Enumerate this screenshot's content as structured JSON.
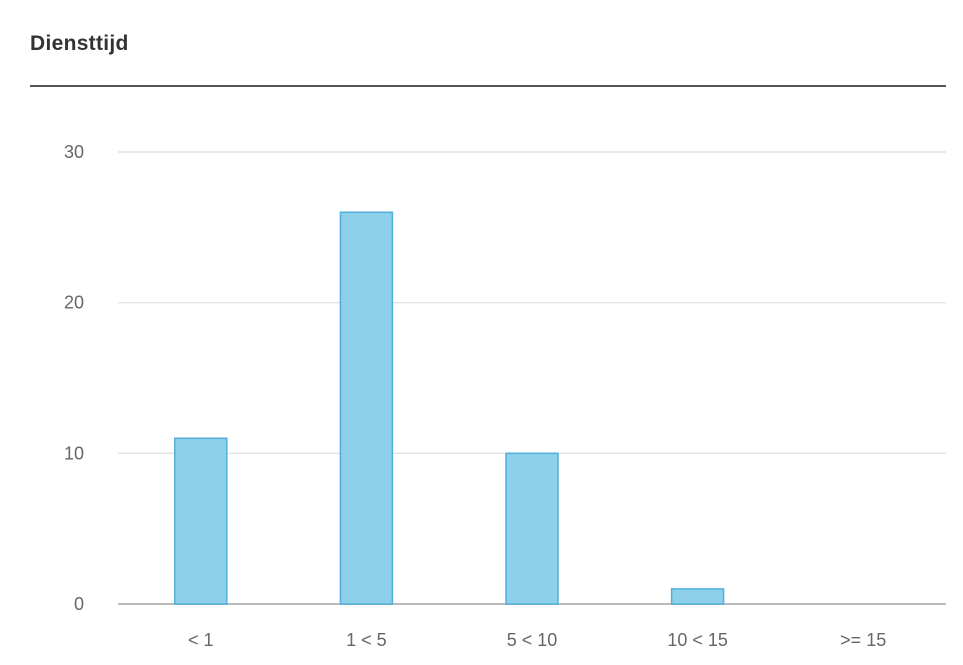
{
  "panel": {
    "title": "Diensttijd"
  },
  "colors": {
    "bar_fill": "#8ecfea",
    "bar_stroke": "#4fb0dc",
    "grid": "#e4e4e4",
    "axis": "#bbbbbb"
  },
  "chart_data": {
    "type": "bar",
    "categories": [
      "< 1",
      "1 < 5",
      "5 < 10",
      "10 < 15",
      ">= 15"
    ],
    "values": [
      11,
      26,
      10,
      1,
      0
    ],
    "ylim": [
      0,
      30
    ],
    "yticks": [
      0,
      10,
      20,
      30
    ],
    "grid": true,
    "legend": "none"
  }
}
